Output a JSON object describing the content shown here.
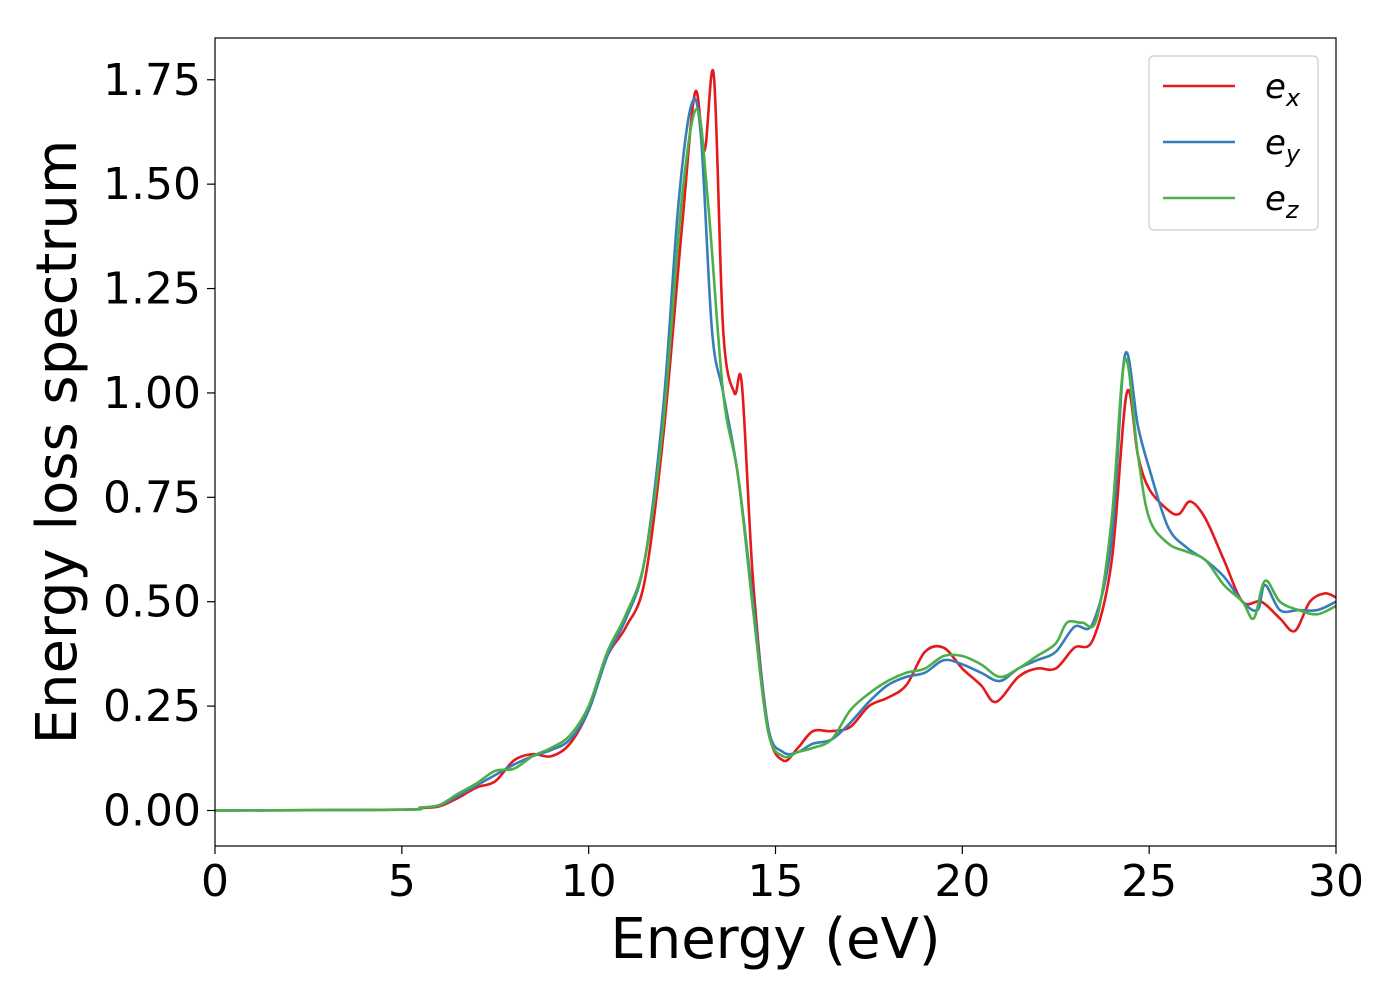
{
  "chart_data": {
    "type": "line",
    "title": "",
    "xlabel": "Energy (eV)",
    "ylabel": "Energy loss spectrum",
    "xlim": [
      0,
      30
    ],
    "ylim": [
      -0.085,
      1.85
    ],
    "xticks": [
      0,
      5,
      10,
      15,
      20,
      25,
      30
    ],
    "xtick_labels": [
      "0",
      "5",
      "10",
      "15",
      "20",
      "25",
      "30"
    ],
    "yticks": [
      0.0,
      0.25,
      0.5,
      0.75,
      1.0,
      1.25,
      1.5,
      1.75
    ],
    "ytick_labels": [
      "0.00",
      "0.25",
      "0.50",
      "0.75",
      "1.00",
      "1.25",
      "1.50",
      "1.75"
    ],
    "grid": false,
    "legend_position": "top-right",
    "series": [
      {
        "name": "e",
        "subscript": "x",
        "color": "#e41a1c",
        "points": [
          [
            0,
            0
          ],
          [
            5,
            0.002
          ],
          [
            5.5,
            0.006
          ],
          [
            6,
            0.01
          ],
          [
            6.5,
            0.03
          ],
          [
            7,
            0.055
          ],
          [
            7.5,
            0.07
          ],
          [
            8,
            0.12
          ],
          [
            8.5,
            0.135
          ],
          [
            9,
            0.13
          ],
          [
            9.5,
            0.16
          ],
          [
            10,
            0.24
          ],
          [
            10.5,
            0.37
          ],
          [
            11,
            0.44
          ],
          [
            11.5,
            0.55
          ],
          [
            12,
            0.9
          ],
          [
            12.5,
            1.4
          ],
          [
            12.85,
            1.72
          ],
          [
            13.1,
            1.58
          ],
          [
            13.35,
            1.76
          ],
          [
            13.6,
            1.15
          ],
          [
            13.9,
            1.0
          ],
          [
            14.1,
            1.02
          ],
          [
            14.4,
            0.55
          ],
          [
            14.8,
            0.2
          ],
          [
            15.2,
            0.12
          ],
          [
            15.6,
            0.15
          ],
          [
            16,
            0.19
          ],
          [
            16.5,
            0.19
          ],
          [
            17,
            0.2
          ],
          [
            17.5,
            0.25
          ],
          [
            18,
            0.27
          ],
          [
            18.5,
            0.3
          ],
          [
            19,
            0.38
          ],
          [
            19.5,
            0.39
          ],
          [
            20,
            0.34
          ],
          [
            20.5,
            0.3
          ],
          [
            20.9,
            0.26
          ],
          [
            21.5,
            0.32
          ],
          [
            22,
            0.34
          ],
          [
            22.5,
            0.34
          ],
          [
            23,
            0.39
          ],
          [
            23.5,
            0.41
          ],
          [
            24,
            0.6
          ],
          [
            24.4,
            1.0
          ],
          [
            24.7,
            0.85
          ],
          [
            25,
            0.77
          ],
          [
            25.5,
            0.72
          ],
          [
            25.8,
            0.71
          ],
          [
            26.1,
            0.74
          ],
          [
            26.5,
            0.7
          ],
          [
            27,
            0.6
          ],
          [
            27.5,
            0.5
          ],
          [
            28,
            0.5
          ],
          [
            28.5,
            0.46
          ],
          [
            28.9,
            0.43
          ],
          [
            29.3,
            0.5
          ],
          [
            29.7,
            0.52
          ],
          [
            30,
            0.51
          ]
        ]
      },
      {
        "name": "e",
        "subscript": "y",
        "color": "#377eb8",
        "points": [
          [
            0,
            0
          ],
          [
            5,
            0.002
          ],
          [
            5.5,
            0.007
          ],
          [
            6,
            0.012
          ],
          [
            6.5,
            0.035
          ],
          [
            7,
            0.06
          ],
          [
            7.5,
            0.085
          ],
          [
            8,
            0.11
          ],
          [
            8.5,
            0.13
          ],
          [
            9,
            0.145
          ],
          [
            9.5,
            0.17
          ],
          [
            10,
            0.24
          ],
          [
            10.5,
            0.37
          ],
          [
            11,
            0.46
          ],
          [
            11.5,
            0.6
          ],
          [
            12,
            0.97
          ],
          [
            12.4,
            1.45
          ],
          [
            12.75,
            1.69
          ],
          [
            13,
            1.62
          ],
          [
            13.3,
            1.15
          ],
          [
            13.6,
            1.0
          ],
          [
            14,
            0.8
          ],
          [
            14.4,
            0.5
          ],
          [
            14.8,
            0.2
          ],
          [
            15.2,
            0.14
          ],
          [
            15.6,
            0.14
          ],
          [
            16,
            0.16
          ],
          [
            16.5,
            0.17
          ],
          [
            17,
            0.21
          ],
          [
            17.5,
            0.26
          ],
          [
            18,
            0.3
          ],
          [
            18.5,
            0.32
          ],
          [
            19,
            0.33
          ],
          [
            19.5,
            0.36
          ],
          [
            20,
            0.35
          ],
          [
            20.5,
            0.33
          ],
          [
            21,
            0.31
          ],
          [
            21.5,
            0.34
          ],
          [
            22,
            0.36
          ],
          [
            22.5,
            0.38
          ],
          [
            23,
            0.44
          ],
          [
            23.5,
            0.45
          ],
          [
            24,
            0.65
          ],
          [
            24.35,
            1.09
          ],
          [
            24.7,
            0.92
          ],
          [
            25,
            0.82
          ],
          [
            25.5,
            0.68
          ],
          [
            26,
            0.63
          ],
          [
            26.5,
            0.6
          ],
          [
            27,
            0.56
          ],
          [
            27.5,
            0.5
          ],
          [
            27.9,
            0.48
          ],
          [
            28.1,
            0.54
          ],
          [
            28.5,
            0.48
          ],
          [
            29,
            0.48
          ],
          [
            29.5,
            0.48
          ],
          [
            30,
            0.5
          ]
        ]
      },
      {
        "name": "e",
        "subscript": "z",
        "color": "#4daf4a",
        "points": [
          [
            0,
            0
          ],
          [
            5,
            0.002
          ],
          [
            5.5,
            0.007
          ],
          [
            6,
            0.013
          ],
          [
            6.5,
            0.04
          ],
          [
            7,
            0.065
          ],
          [
            7.5,
            0.095
          ],
          [
            8,
            0.1
          ],
          [
            8.5,
            0.13
          ],
          [
            9,
            0.15
          ],
          [
            9.5,
            0.18
          ],
          [
            10,
            0.25
          ],
          [
            10.5,
            0.38
          ],
          [
            11,
            0.47
          ],
          [
            11.5,
            0.6
          ],
          [
            12,
            0.93
          ],
          [
            12.5,
            1.47
          ],
          [
            12.9,
            1.68
          ],
          [
            13.2,
            1.45
          ],
          [
            13.6,
            1.0
          ],
          [
            14,
            0.8
          ],
          [
            14.4,
            0.48
          ],
          [
            14.8,
            0.19
          ],
          [
            15.2,
            0.13
          ],
          [
            15.6,
            0.14
          ],
          [
            16,
            0.15
          ],
          [
            16.5,
            0.17
          ],
          [
            17,
            0.24
          ],
          [
            17.5,
            0.28
          ],
          [
            18,
            0.31
          ],
          [
            18.5,
            0.33
          ],
          [
            19,
            0.34
          ],
          [
            19.5,
            0.37
          ],
          [
            20,
            0.37
          ],
          [
            20.5,
            0.35
          ],
          [
            21,
            0.32
          ],
          [
            21.5,
            0.34
          ],
          [
            22,
            0.37
          ],
          [
            22.5,
            0.4
          ],
          [
            22.8,
            0.45
          ],
          [
            23.2,
            0.45
          ],
          [
            23.6,
            0.46
          ],
          [
            24,
            0.7
          ],
          [
            24.35,
            1.08
          ],
          [
            24.7,
            0.85
          ],
          [
            25,
            0.7
          ],
          [
            25.5,
            0.64
          ],
          [
            26,
            0.62
          ],
          [
            26.5,
            0.6
          ],
          [
            27,
            0.54
          ],
          [
            27.5,
            0.5
          ],
          [
            27.8,
            0.46
          ],
          [
            28.1,
            0.55
          ],
          [
            28.5,
            0.5
          ],
          [
            29,
            0.48
          ],
          [
            29.5,
            0.47
          ],
          [
            30,
            0.49
          ]
        ]
      }
    ]
  }
}
